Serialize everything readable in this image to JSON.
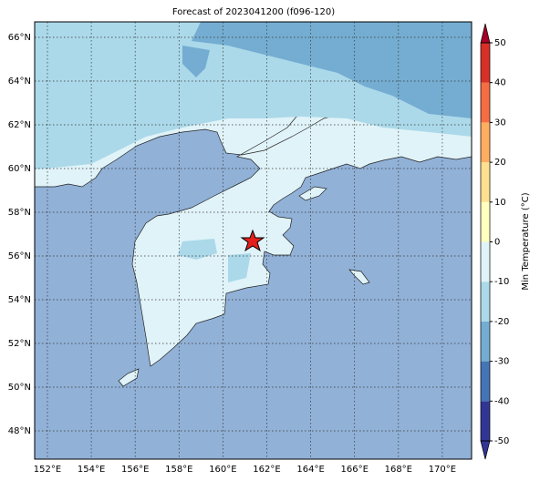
{
  "map": {
    "title": "Forecast of 2023041200 (f096-120)",
    "lat_labels": [
      "66°N",
      "64°N",
      "62°N",
      "60°N",
      "58°N",
      "56°N",
      "54°N",
      "52°N",
      "50°N",
      "48°N"
    ],
    "lon_labels": [
      "152°E",
      "154°E",
      "156°E",
      "158°E",
      "160°E",
      "162°E",
      "164°E",
      "166°E",
      "168°E",
      "170°E"
    ],
    "colorbar": {
      "label": "Min Temperature (°C)",
      "ticks": [
        -50,
        -40,
        -30,
        -20,
        -10,
        0,
        10,
        20,
        30,
        40,
        50
      ],
      "colors": [
        "#313695",
        "#4575b4",
        "#74add1",
        "#abd9e9",
        "#e0f3f8",
        "#ffffbf",
        "#fee090",
        "#fdae61",
        "#f46d43",
        "#d73027",
        "#a50026"
      ]
    }
  }
}
